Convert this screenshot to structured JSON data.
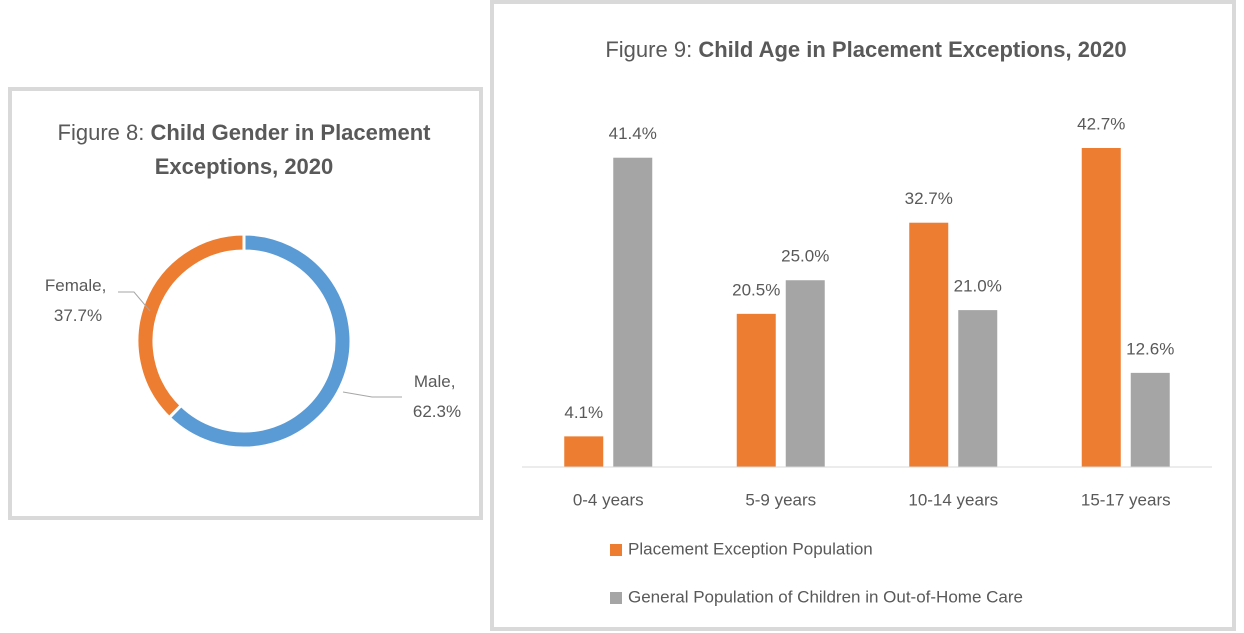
{
  "chart_data": [
    {
      "type": "pie",
      "title_label": "Figure 8:",
      "title": "Child Gender in Placement Exceptions, 2020",
      "values": [
        62.3,
        37.7
      ],
      "value_labels": [
        "Male, 62.3%",
        "Female, 37.7%"
      ],
      "colors": [
        "#5b9bd5",
        "#ed7d31"
      ]
    },
    {
      "type": "bar",
      "title_label": "Figure 9:",
      "title": "Child Age in Placement Exceptions, 2020",
      "categories": [
        "0-4 years",
        "5-9 years",
        "10-14 years",
        "15-17 years"
      ],
      "series": [
        {
          "name": "Placement Exception Population",
          "color": "#ed7d31",
          "values": [
            4.1,
            20.5,
            32.7,
            42.7
          ],
          "value_labels": [
            "4.1%",
            "20.5%",
            "32.7%",
            "42.7%"
          ]
        },
        {
          "name": "General Population of Children in Out-of-Home Care",
          "color": "#a5a5a5",
          "values": [
            41.4,
            25.0,
            21.0,
            12.6
          ],
          "value_labels": [
            "41.4%",
            "25.0%",
            "21.0%",
            "12.6%"
          ]
        }
      ]
    }
  ]
}
